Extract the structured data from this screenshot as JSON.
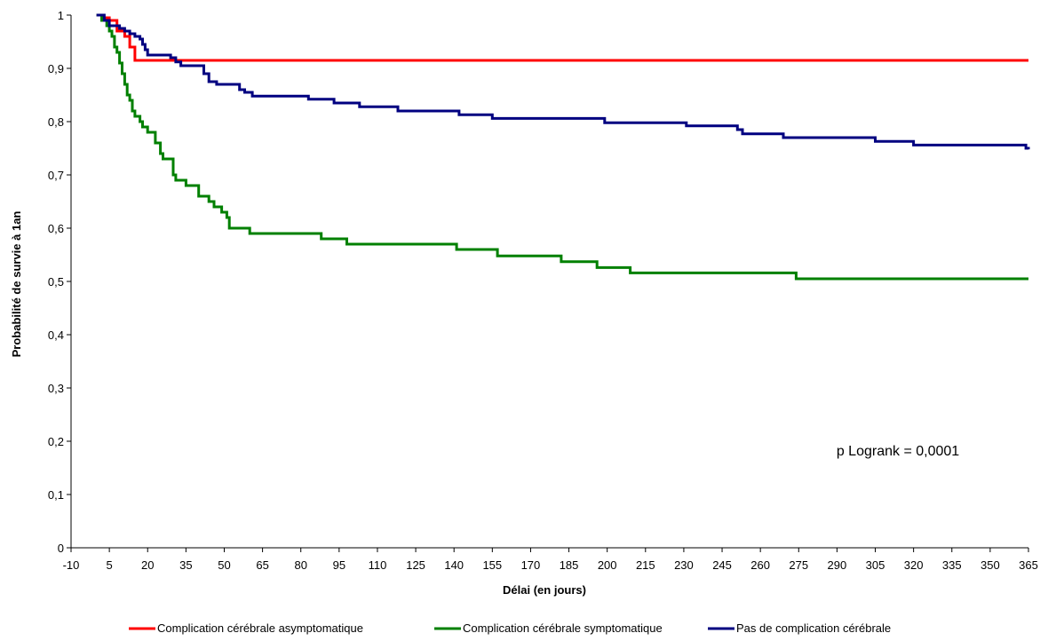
{
  "chart_data": {
    "type": "line",
    "step": true,
    "xlabel": "Délai (en jours)",
    "ylabel": "Probabilité de survie à 1an",
    "xlim": [
      -10,
      365
    ],
    "ylim": [
      0,
      1
    ],
    "x_ticks": [
      -10,
      5,
      20,
      35,
      50,
      65,
      80,
      95,
      110,
      125,
      140,
      155,
      170,
      185,
      200,
      215,
      230,
      245,
      260,
      275,
      290,
      305,
      320,
      335,
      350,
      365
    ],
    "y_ticks": [
      0,
      0.1,
      0.2,
      0.3,
      0.4,
      0.5,
      0.6,
      0.7,
      0.8,
      0.9,
      1
    ],
    "y_tick_labels": [
      "0",
      "0,1",
      "0,2",
      "0,3",
      "0,4",
      "0,5",
      "0,6",
      "0,7",
      "0,8",
      "0,9",
      "1"
    ],
    "grid": false,
    "legend_position": "bottom",
    "annotation": "p Logrank = 0,0001",
    "series": [
      {
        "name": "Complication cérébrale asymptomatique",
        "color": "#ff0000",
        "x": [
          0,
          2,
          5,
          8,
          11,
          13,
          15,
          365
        ],
        "y": [
          1,
          0.995,
          0.99,
          0.97,
          0.96,
          0.94,
          0.915,
          0.915
        ]
      },
      {
        "name": "Complication cérébrale symptomatique",
        "color": "#008000",
        "x": [
          0,
          2,
          4,
          5,
          6,
          7,
          8,
          9,
          10,
          11,
          12,
          13,
          14,
          15,
          16,
          17,
          18,
          19,
          20,
          22,
          23,
          25,
          26,
          27,
          30,
          31,
          32,
          35,
          40,
          44,
          46,
          49,
          51,
          52,
          53,
          60,
          88,
          98,
          141,
          157,
          182,
          196,
          209,
          274,
          365
        ],
        "y": [
          1,
          0.99,
          0.98,
          0.97,
          0.96,
          0.94,
          0.93,
          0.91,
          0.89,
          0.87,
          0.85,
          0.84,
          0.82,
          0.81,
          0.81,
          0.8,
          0.79,
          0.79,
          0.78,
          0.78,
          0.76,
          0.74,
          0.73,
          0.73,
          0.7,
          0.69,
          0.69,
          0.68,
          0.66,
          0.65,
          0.64,
          0.63,
          0.62,
          0.6,
          0.6,
          0.59,
          0.58,
          0.57,
          0.56,
          0.548,
          0.537,
          0.526,
          0.516,
          0.505,
          0.505
        ]
      },
      {
        "name": "Pas de complication cérébrale",
        "color": "#000080",
        "x": [
          0,
          3,
          5,
          9,
          11,
          13,
          15,
          17,
          18,
          19,
          20,
          22,
          29,
          31,
          33,
          42,
          44,
          47,
          56,
          58,
          61,
          83,
          93,
          103,
          118,
          142,
          155,
          199,
          231,
          251,
          253,
          269,
          305,
          320,
          364,
          365
        ],
        "y": [
          1,
          0.99,
          0.98,
          0.975,
          0.97,
          0.965,
          0.96,
          0.955,
          0.945,
          0.935,
          0.925,
          0.925,
          0.92,
          0.912,
          0.905,
          0.89,
          0.875,
          0.87,
          0.86,
          0.855,
          0.848,
          0.842,
          0.835,
          0.828,
          0.82,
          0.813,
          0.806,
          0.798,
          0.792,
          0.785,
          0.777,
          0.77,
          0.763,
          0.756,
          0.75,
          0.748
        ]
      }
    ]
  }
}
